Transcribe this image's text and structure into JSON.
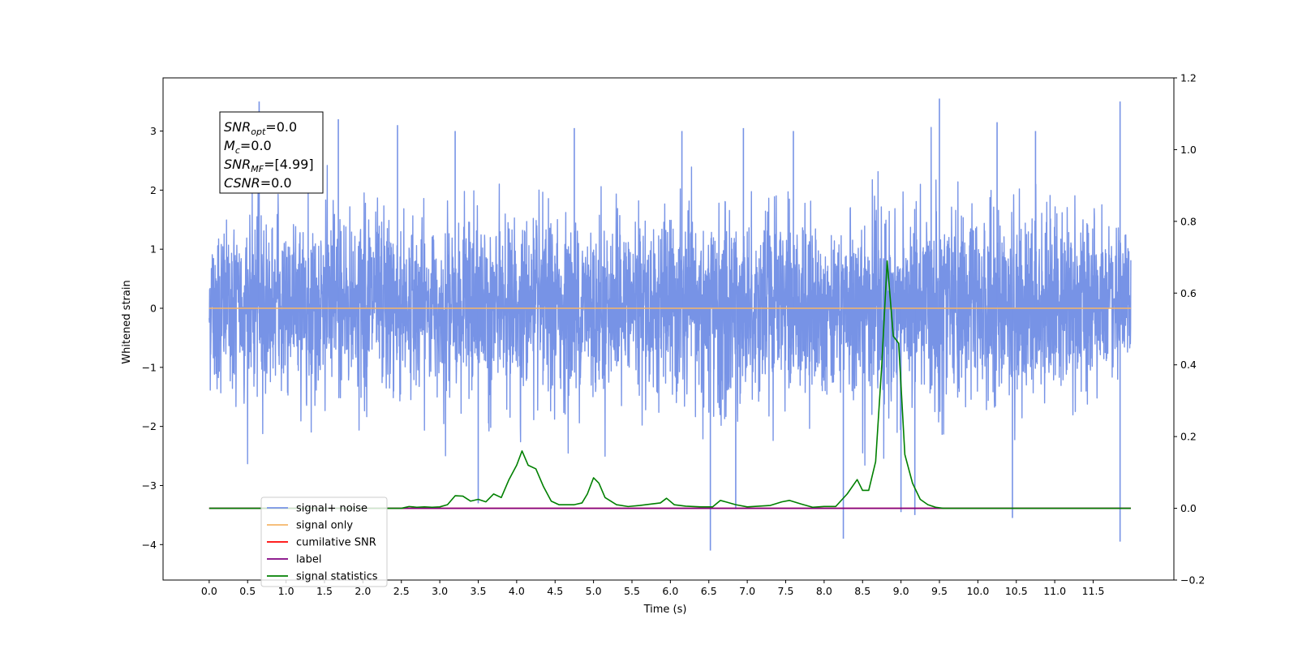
{
  "chart_data": {
    "type": "line",
    "xlabel": "Time (s)",
    "ylabel": "Whitened strain",
    "xlim": [
      -0.6,
      12.55
    ],
    "ylim": [
      -4.6,
      3.9
    ],
    "y2lim": [
      -0.2,
      1.2
    ],
    "xticks": [
      0.0,
      0.5,
      1.0,
      1.5,
      2.0,
      2.5,
      3.0,
      3.5,
      4.0,
      4.5,
      5.0,
      5.5,
      6.0,
      6.5,
      7.0,
      7.5,
      8.0,
      8.5,
      9.0,
      9.5,
      10.0,
      10.5,
      11.0,
      11.5
    ],
    "xtick_labels": [
      "0.0",
      "0.5",
      "1.0",
      "1.5",
      "2.0",
      "2.5",
      "3.0",
      "3.5",
      "4.0",
      "4.5",
      "5.0",
      "5.5",
      "6.0",
      "6.5",
      "7.0",
      "7.5",
      "8.0",
      "8.5",
      "9.0",
      "9.5",
      "10.0",
      "10.5",
      "11.0",
      "11.5"
    ],
    "yticks": [
      -4,
      -3,
      -2,
      -1,
      0,
      1,
      2,
      3
    ],
    "ytick_labels": [
      "−4",
      "−3",
      "−2",
      "−1",
      "0",
      "1",
      "2",
      "3"
    ],
    "y2ticks": [
      -0.2,
      0.0,
      0.2,
      0.4,
      0.6,
      0.8,
      1.0,
      1.2
    ],
    "y2tick_labels": [
      "−0.2",
      "0.0",
      "0.2",
      "0.4",
      "0.6",
      "0.8",
      "1.0",
      "1.2"
    ],
    "grid": false,
    "legend_position": "lower-left",
    "annotation": {
      "lines": [
        {
          "base": "SNR",
          "sub": "opt",
          "rest": "=0.0"
        },
        {
          "base": "M",
          "sub": "c",
          "rest": "=0.0"
        },
        {
          "base": "SNR",
          "sub": "MF",
          "rest": "=[4.99]"
        },
        {
          "base": "CSNR",
          "sub": "",
          "rest": "=0.0"
        }
      ]
    },
    "noise_envelope": {
      "x": [
        0.0,
        0.5,
        1.0,
        1.5,
        2.0,
        2.5,
        3.0,
        3.5,
        4.0,
        4.5,
        5.0,
        5.5,
        6.0,
        6.5,
        7.0,
        7.5,
        8.0,
        8.5,
        9.0,
        9.5,
        10.0,
        10.5,
        11.0,
        11.5,
        11.99
      ],
      "upper": [
        2.7,
        2.6,
        3.4,
        2.9,
        3.1,
        2.8,
        2.6,
        2.8,
        2.6,
        2.7,
        2.8,
        2.6,
        2.7,
        2.8,
        2.9,
        2.9,
        2.9,
        2.8,
        2.7,
        3.5,
        2.8,
        3.2,
        3.2,
        2.9,
        2.2
      ],
      "lower": [
        -2.7,
        -3.0,
        -2.8,
        -3.0,
        -2.8,
        -2.8,
        -2.7,
        -3.2,
        -3.0,
        -2.9,
        -3.0,
        -2.8,
        -2.9,
        -4.1,
        -3.3,
        -2.9,
        -2.8,
        -3.9,
        -3.4,
        -3.1,
        -2.9,
        -3.5,
        -2.8,
        -3.2,
        -2.3
      ],
      "spikes": [
        {
          "x": 0.65,
          "y": 3.5
        },
        {
          "x": 1.68,
          "y": 3.2
        },
        {
          "x": 2.45,
          "y": 3.1
        },
        {
          "x": 3.2,
          "y": 3.0
        },
        {
          "x": 4.75,
          "y": 3.05
        },
        {
          "x": 6.15,
          "y": 3.0
        },
        {
          "x": 6.95,
          "y": 3.05
        },
        {
          "x": 7.6,
          "y": 3.0
        },
        {
          "x": 9.5,
          "y": 3.55
        },
        {
          "x": 10.25,
          "y": 3.15
        },
        {
          "x": 10.75,
          "y": 3.0
        },
        {
          "x": 11.85,
          "y": 3.5
        },
        {
          "x": 6.52,
          "y": -4.1
        },
        {
          "x": 8.25,
          "y": -3.9
        },
        {
          "x": 9.0,
          "y": -3.45
        },
        {
          "x": 9.18,
          "y": -3.5
        },
        {
          "x": 10.45,
          "y": -3.55
        },
        {
          "x": 11.85,
          "y": -3.95
        },
        {
          "x": 3.5,
          "y": -3.3
        },
        {
          "x": 6.85,
          "y": -3.4
        }
      ]
    },
    "series": [
      {
        "name": "signal+ noise",
        "color": "#7793e6",
        "axis": "left",
        "note": "random noise"
      },
      {
        "name": "signal only",
        "color": "#f5b66a",
        "axis": "left",
        "x": [
          0.0,
          11.99
        ],
        "y": [
          0.0,
          0.0
        ]
      },
      {
        "name": "cumilative SNR",
        "color": "#ff0000",
        "axis": "right",
        "x": [
          0.0,
          11.99
        ],
        "y": [
          0.0,
          0.0
        ]
      },
      {
        "name": "label",
        "color": "#800080",
        "axis": "right",
        "x": [
          0.0,
          11.99
        ],
        "y": [
          0.0,
          0.0
        ]
      },
      {
        "name": "signal statistics",
        "color": "#008000",
        "axis": "right",
        "x": [
          0.0,
          2.5,
          2.6,
          2.7,
          2.8,
          2.9,
          3.0,
          3.1,
          3.2,
          3.3,
          3.4,
          3.5,
          3.6,
          3.7,
          3.8,
          3.9,
          4.0,
          4.07,
          4.15,
          4.25,
          4.35,
          4.45,
          4.55,
          4.65,
          4.75,
          4.85,
          4.92,
          5.0,
          5.07,
          5.15,
          5.3,
          5.45,
          5.6,
          5.75,
          5.87,
          5.95,
          6.05,
          6.2,
          6.4,
          6.55,
          6.65,
          6.72,
          6.85,
          7.0,
          7.15,
          7.3,
          7.45,
          7.55,
          7.7,
          7.85,
          8.0,
          8.15,
          8.3,
          8.43,
          8.5,
          8.58,
          8.67,
          8.75,
          8.82,
          8.9,
          8.97,
          9.05,
          9.15,
          9.25,
          9.35,
          9.45,
          9.55,
          9.7,
          10.0,
          11.0,
          11.99
        ],
        "y": [
          0.0,
          0.0,
          0.005,
          0.003,
          0.004,
          0.003,
          0.004,
          0.01,
          0.035,
          0.034,
          0.02,
          0.025,
          0.018,
          0.04,
          0.03,
          0.08,
          0.12,
          0.16,
          0.12,
          0.11,
          0.06,
          0.02,
          0.01,
          0.01,
          0.01,
          0.015,
          0.04,
          0.085,
          0.07,
          0.03,
          0.01,
          0.005,
          0.008,
          0.012,
          0.015,
          0.028,
          0.01,
          0.006,
          0.004,
          0.004,
          0.022,
          0.018,
          0.01,
          0.004,
          0.006,
          0.008,
          0.018,
          0.022,
          0.012,
          0.003,
          0.005,
          0.005,
          0.04,
          0.08,
          0.05,
          0.05,
          0.13,
          0.4,
          0.69,
          0.48,
          0.46,
          0.15,
          0.07,
          0.025,
          0.01,
          0.003,
          0.0,
          0.0,
          0.0,
          0.0,
          0.0
        ]
      }
    ]
  }
}
